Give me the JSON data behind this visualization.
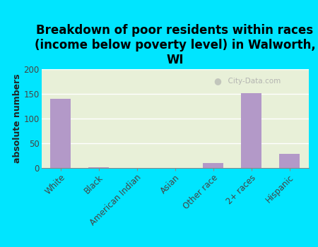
{
  "title": "Breakdown of poor residents within races\n(income below poverty level) in Walworth,\nWI",
  "categories": [
    "White",
    "Black",
    "American Indian",
    "Asian",
    "Other race",
    "2+ races",
    "Hispanic"
  ],
  "values": [
    140,
    2,
    0,
    0,
    10,
    151,
    29
  ],
  "bar_color": "#b399c8",
  "plot_bg_top": "#e8f0d8",
  "plot_bg_bottom": "#f5faf0",
  "fig_bg_color": "#00e5ff",
  "ylabel": "absolute numbers",
  "ylim": [
    0,
    200
  ],
  "yticks": [
    0,
    50,
    100,
    150,
    200
  ],
  "title_fontsize": 12,
  "axis_label_fontsize": 9,
  "tick_fontsize": 8.5,
  "watermark": "City-Data.com"
}
